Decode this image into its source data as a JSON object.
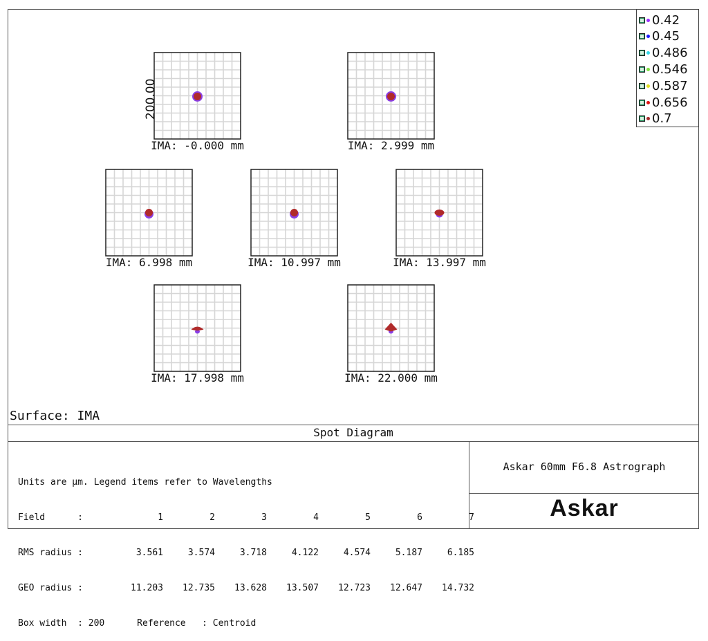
{
  "diagram": {
    "surface_label": "Surface: IMA",
    "title": "Spot Diagram",
    "scale_label": "200.00",
    "fields": [
      {
        "label": "IMA: -0.000 mm",
        "spot": "round"
      },
      {
        "label": "IMA: 2.999 mm",
        "spot": "round"
      },
      {
        "label": "IMA: 6.998 mm",
        "spot": "round-small"
      },
      {
        "label": "IMA: 10.997 mm",
        "spot": "round-small"
      },
      {
        "label": "IMA: 13.997 mm",
        "spot": "flat"
      },
      {
        "label": "IMA: 17.998 mm",
        "spot": "wing"
      },
      {
        "label": "IMA: 22.000 mm",
        "spot": "diamond"
      }
    ],
    "legend": [
      {
        "label": "0.42",
        "color": "#9b30ff"
      },
      {
        "label": "0.45",
        "color": "#1a1aff"
      },
      {
        "label": "0.486",
        "color": "#30d8e8"
      },
      {
        "label": "0.546",
        "color": "#7fe040"
      },
      {
        "label": "0.587",
        "color": "#e0e020"
      },
      {
        "label": "0.656",
        "color": "#e01010"
      },
      {
        "label": "0.7",
        "color": "#a52a2a"
      }
    ],
    "info": {
      "units_line": "Units are µm. Legend items refer to Wavelengths",
      "field_header": "Field      :",
      "field_numbers": [
        "1",
        "2",
        "3",
        "4",
        "5",
        "6",
        "7"
      ],
      "rms_header": "RMS radius :",
      "rms_values": [
        "3.561",
        "3.574",
        "3.718",
        "4.122",
        "4.574",
        "5.187",
        "6.185"
      ],
      "geo_header": "GEO radius :",
      "geo_values": [
        "11.203",
        "12.735",
        "13.628",
        "13.507",
        "12.723",
        "12.647",
        "14.732"
      ],
      "box_width_line": "Box width  : 200      Reference   : Centroid"
    },
    "system_name": "Askar 60mm F6.8 Astrograph",
    "brand": "Askar"
  }
}
